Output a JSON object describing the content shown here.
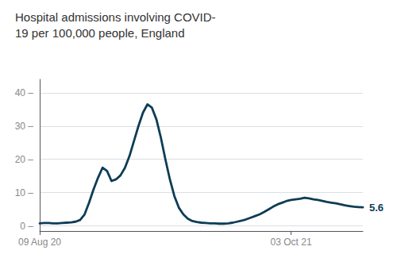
{
  "chart_data": {
    "type": "line",
    "title": "Hospital admissions involving COVID-\n19 per 100,000 people, England",
    "categories": [
      "09 Aug 20",
      null,
      null,
      null,
      null,
      null,
      null,
      null,
      null,
      null,
      null,
      null,
      null,
      null,
      null,
      null,
      null,
      null,
      null,
      null,
      null,
      null,
      null,
      null,
      null,
      null,
      null,
      null,
      null,
      null,
      null,
      null,
      null,
      null,
      null,
      null,
      null,
      null,
      null,
      null,
      null,
      null,
      null,
      null,
      null,
      null,
      null,
      null,
      null,
      null,
      null,
      null,
      null,
      null,
      null,
      null,
      "03 Oct 21",
      null,
      null,
      null,
      null,
      null,
      null,
      null,
      null,
      null,
      null,
      null,
      null,
      null,
      null,
      null,
      null
    ],
    "values": [
      0.8,
      0.9,
      0.9,
      0.8,
      0.8,
      0.9,
      1.0,
      1.1,
      1.3,
      1.8,
      3.5,
      7.0,
      11.0,
      14.5,
      17.5,
      16.5,
      13.5,
      14.0,
      15.2,
      17.5,
      21.0,
      25.5,
      30.0,
      34.0,
      36.5,
      35.5,
      32.0,
      26.5,
      20.0,
      14.0,
      9.0,
      5.5,
      3.5,
      2.2,
      1.5,
      1.2,
      1.0,
      0.9,
      0.8,
      0.8,
      0.7,
      0.7,
      0.8,
      1.0,
      1.3,
      1.6,
      2.0,
      2.5,
      3.0,
      3.5,
      4.2,
      5.0,
      5.8,
      6.5,
      7.0,
      7.5,
      7.8,
      8.0,
      8.2,
      8.5,
      8.3,
      8.0,
      7.8,
      7.5,
      7.2,
      7.0,
      6.8,
      6.5,
      6.2,
      6.0,
      5.8,
      5.7,
      5.6
    ],
    "color": "#0d3d56",
    "ylim": [
      -1.5,
      44
    ],
    "yticks": [
      {
        "value": 0,
        "label": "0 –"
      },
      {
        "value": 10,
        "label": "10 –"
      },
      {
        "value": 20,
        "label": "20 –"
      },
      {
        "value": 30,
        "label": "30 –"
      },
      {
        "value": 40,
        "label": "40 –"
      }
    ],
    "annotations": [
      "5.6"
    ],
    "grid": true
  }
}
